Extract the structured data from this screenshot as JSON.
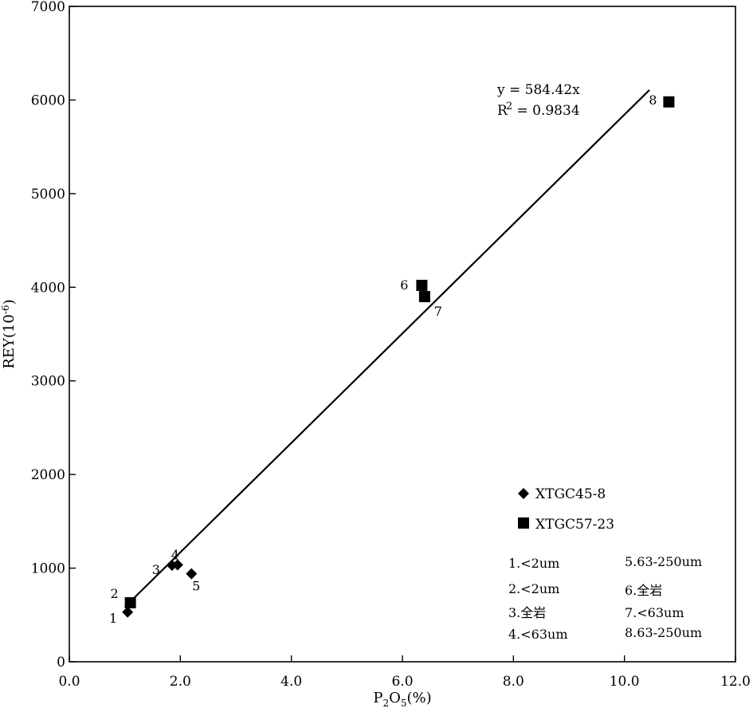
{
  "chart_data": {
    "type": "scatter",
    "xlabel": {
      "main": "P",
      "sub1": "2",
      "mid": "O",
      "sub2": "5",
      "unit": "(%)"
    },
    "ylabel": {
      "main": "REY(10",
      "sup": "-6",
      "close": ")"
    },
    "xlim": [
      0,
      12
    ],
    "ylim": [
      0,
      7000
    ],
    "x_ticks": [
      0,
      2,
      4,
      6,
      8,
      10,
      12
    ],
    "x_tick_labels": [
      "0.0",
      "2.0",
      "4.0",
      "6.0",
      "8.0",
      "10.0",
      "12.0"
    ],
    "y_ticks": [
      0,
      1000,
      2000,
      3000,
      4000,
      5000,
      6000,
      7000
    ],
    "y_tick_labels": [
      "0",
      "1000",
      "2000",
      "3000",
      "4000",
      "5000",
      "6000",
      "7000"
    ],
    "grid": false,
    "series": [
      {
        "name": "XTGC45-8",
        "marker": "diamond",
        "points": [
          {
            "label": "1",
            "x": 1.05,
            "y": 530
          },
          {
            "label": "3",
            "x": 1.85,
            "y": 1030
          },
          {
            "label": "4",
            "x": 1.95,
            "y": 1035
          },
          {
            "label": "5",
            "x": 2.2,
            "y": 940
          }
        ]
      },
      {
        "name": "XTGC57-23",
        "marker": "square",
        "points": [
          {
            "label": "2",
            "x": 1.1,
            "y": 630
          },
          {
            "label": "6",
            "x": 6.35,
            "y": 4020
          },
          {
            "label": "7",
            "x": 6.4,
            "y": 3900
          },
          {
            "label": "8",
            "x": 10.8,
            "y": 5980
          }
        ]
      }
    ],
    "fit_line": {
      "x": [
        1.0,
        10.45
      ],
      "y": [
        584.42,
        6107
      ]
    },
    "equation": {
      "line1": "y = 584.42x",
      "line2_a": "R",
      "line2_sup": "2",
      "line2_b": " = 0.9834"
    },
    "legend": {
      "placement": "bottom-right",
      "items": [
        "XTGC45-8",
        "XTGC57-23"
      ]
    },
    "notes": [
      "1.<2um",
      "5.63-250um",
      "2.<2um",
      "6.全岩",
      "3.全岩",
      "7.<63um",
      "4.<63um",
      "8.63-250um"
    ]
  }
}
